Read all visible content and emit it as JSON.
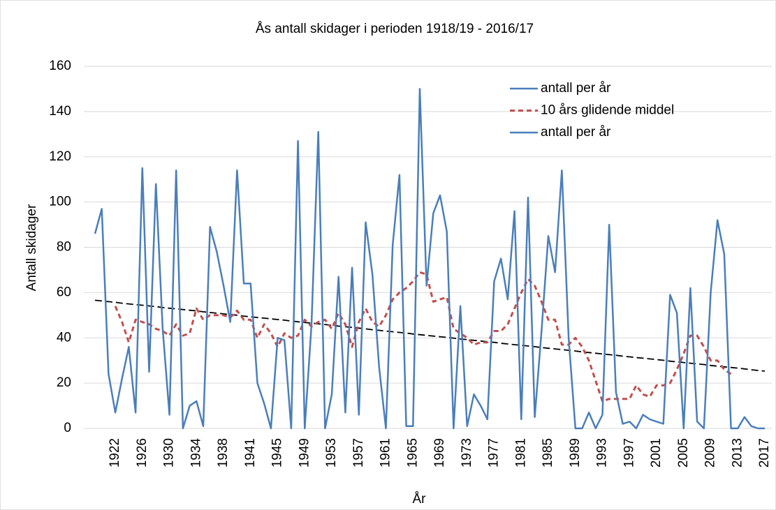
{
  "chart_data": {
    "type": "line",
    "title": "Ås antall skidager i perioden 1918/19 - 2016/17",
    "xlabel": "År",
    "ylabel": "Antall skidager",
    "categories": [
      null,
      null,
      null,
      "1922",
      null,
      null,
      null,
      "1926",
      null,
      null,
      null,
      "1930",
      null,
      null,
      null,
      "1934",
      null,
      null,
      null,
      "1938",
      null,
      null,
      null,
      "1941",
      null,
      null,
      null,
      "1945",
      null,
      null,
      null,
      "1949",
      null,
      null,
      null,
      "1953",
      null,
      null,
      null,
      "1957",
      null,
      null,
      null,
      "1961",
      null,
      null,
      null,
      "1965",
      null,
      null,
      null,
      "1969",
      null,
      null,
      null,
      "1973",
      null,
      null,
      null,
      "1977",
      null,
      null,
      null,
      "1981",
      null,
      null,
      null,
      "1985",
      null,
      null,
      null,
      "1989",
      null,
      null,
      null,
      "1993",
      null,
      null,
      null,
      "1997",
      null,
      null,
      null,
      "2001",
      null,
      null,
      null,
      "2005",
      null,
      null,
      null,
      "2009",
      null,
      null,
      null,
      "2013",
      null,
      null,
      null,
      "2017"
    ],
    "series": [
      {
        "name": "antall per år",
        "color": "#4a7ebb",
        "dashed": false,
        "values": [
          86,
          97,
          24,
          7,
          22,
          36,
          7,
          115,
          25,
          108,
          44,
          6,
          114,
          0,
          10,
          12,
          1,
          89,
          78,
          63,
          47,
          114,
          64,
          64,
          20,
          11,
          0,
          40,
          39,
          0,
          127,
          0,
          46,
          131,
          0,
          15,
          67,
          7,
          71,
          6,
          91,
          68,
          27,
          0,
          81,
          112,
          1,
          1,
          150,
          63,
          95,
          103,
          87,
          0,
          54,
          1,
          15,
          10,
          4,
          65,
          75,
          57,
          96,
          4,
          102,
          5,
          43,
          85,
          69,
          114,
          40,
          0,
          0,
          7,
          0,
          6,
          90,
          16,
          2,
          3,
          0,
          6,
          4,
          3,
          2,
          59,
          51,
          0,
          62,
          3,
          0,
          60,
          92,
          77,
          0,
          0,
          5,
          1,
          0,
          0
        ]
      },
      {
        "name": "10 års glidende middel",
        "color": "#c0504d",
        "dashed": true,
        "values": [
          null,
          null,
          null,
          54,
          47,
          38,
          48,
          47,
          46,
          44,
          43,
          41,
          46,
          41,
          42,
          53,
          48,
          50,
          50,
          50,
          49,
          52,
          48,
          48,
          40,
          46,
          42,
          36,
          42,
          40,
          41,
          48,
          45,
          47,
          48,
          44,
          51,
          46,
          36,
          47,
          53,
          47,
          45,
          50,
          57,
          60,
          62,
          65,
          69,
          68,
          56,
          57,
          58,
          44,
          42,
          40,
          37,
          38,
          38,
          43,
          43,
          46,
          53,
          60,
          66,
          63,
          56,
          48,
          48,
          37,
          37,
          40,
          36,
          30,
          21,
          12,
          13,
          13,
          13,
          13,
          19,
          15,
          14,
          19,
          19,
          20,
          26,
          33,
          41,
          41,
          36,
          30,
          30,
          26,
          24,
          null,
          null,
          null,
          null,
          null
        ]
      },
      {
        "name": "antall per år",
        "color": "#000000",
        "legend_color": "#4a7ebb",
        "dashed": true,
        "values": [
          56.6,
          56.3,
          56.0,
          55.7,
          55.3,
          55.0,
          54.7,
          54.4,
          54.1,
          53.8,
          53.4,
          53.1,
          52.8,
          52.5,
          52.2,
          51.9,
          51.5,
          51.2,
          50.9,
          50.6,
          50.3,
          50.0,
          49.6,
          49.3,
          49.0,
          48.7,
          48.4,
          48.1,
          47.8,
          47.4,
          47.1,
          46.8,
          46.5,
          46.2,
          45.9,
          45.5,
          45.2,
          44.9,
          44.6,
          44.3,
          44.0,
          43.6,
          43.3,
          43.0,
          42.7,
          42.4,
          42.1,
          41.7,
          41.4,
          41.1,
          40.8,
          40.5,
          40.2,
          39.9,
          39.5,
          39.2,
          38.9,
          38.6,
          38.3,
          38.0,
          37.6,
          37.3,
          37.0,
          36.7,
          36.4,
          36.1,
          35.7,
          35.4,
          35.1,
          34.8,
          34.5,
          34.2,
          33.8,
          33.5,
          33.2,
          32.9,
          32.6,
          32.3,
          31.9,
          31.6,
          31.3,
          31.0,
          30.7,
          30.4,
          30.1,
          29.7,
          29.4,
          29.1,
          28.8,
          28.5,
          28.2,
          27.8,
          27.5,
          27.2,
          26.9,
          26.6,
          26.3,
          25.9,
          25.6,
          25.3
        ]
      }
    ],
    "ylim": [
      0,
      160
    ],
    "yticks": [
      0,
      20,
      40,
      60,
      80,
      100,
      120,
      140,
      160
    ],
    "grid": true,
    "legend": "upper right"
  }
}
